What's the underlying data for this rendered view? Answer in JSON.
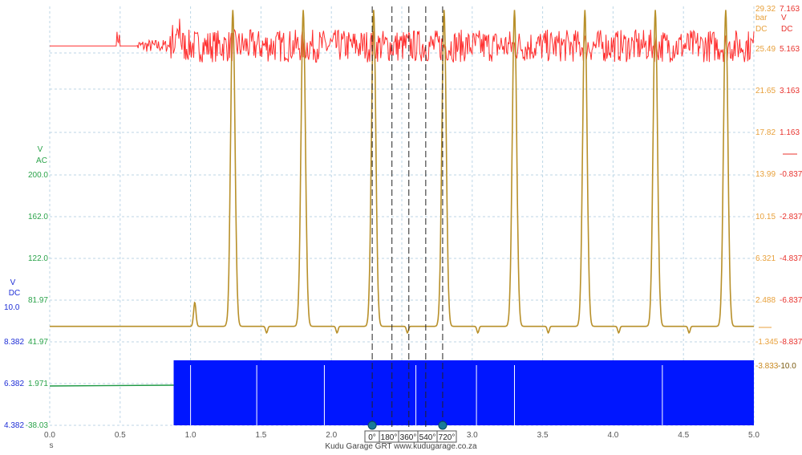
{
  "chart_data": {
    "type": "line",
    "xaxis": {
      "range": [
        0.0,
        5.0
      ],
      "ticks": [
        "0.0",
        "0.5",
        "1.0",
        "1.5",
        "2.0",
        "2.5",
        "3.0",
        "3.5",
        "4.0",
        "4.5",
        "5.0"
      ],
      "unit": "s"
    },
    "axes": {
      "pressure_bar": {
        "color": "#e8a13c",
        "unit_lines": [
          "bar",
          "DC"
        ],
        "ticks": [
          "29.32",
          "25.49",
          "21.65",
          "17.82",
          "13.99",
          "10.15",
          "6.321",
          "2.488",
          "-1.345"
        ]
      },
      "red_volts": {
        "color": "#e8332e",
        "unit_lines": [
          "V",
          "DC"
        ],
        "ticks": [
          "7.163",
          "5.163",
          "3.163",
          "1.163",
          "-0.837",
          "-2.837",
          "-4.837",
          "-6.837",
          "-8.837"
        ]
      },
      "ac_volts": {
        "color": "#2aa34a",
        "unit_lines": [
          "V",
          "AC"
        ],
        "ticks": [
          "200.0",
          "162.0",
          "122.0",
          "81.97",
          "41.97",
          "1.971",
          "-38.03"
        ]
      },
      "blue_volts": {
        "color": "#1f2fd6",
        "unit_lines": [
          "V",
          "DC"
        ],
        "ticks": [
          "10.0",
          "8.382",
          "6.382",
          "4.382"
        ]
      },
      "right_extra": {
        "ticks": [
          "-10.0",
          "-3.833"
        ]
      }
    },
    "series": [
      {
        "color": "#ff2e2e",
        "baseline": 25.7,
        "start": 0.85,
        "noise_amp": 1.5
      },
      {
        "color": "#b8902a",
        "baseline": 0.0,
        "peaks_x": [
          1.03,
          1.3,
          1.8,
          2.3,
          2.8,
          3.3,
          3.8,
          4.3,
          4.8
        ],
        "peaks_y": [
          2.2,
          29.0,
          29.0,
          29.0,
          29.0,
          29.0,
          29.0,
          29.0,
          29.0
        ]
      },
      {
        "color": "#0016ff",
        "fill_from": 0.88
      },
      {
        "color": "#1e9944",
        "level": 1.971,
        "until": 0.88
      }
    ],
    "cursors": [
      {
        "x": 2.29,
        "label": "0°"
      },
      {
        "x": 2.43,
        "label": "180°"
      },
      {
        "x": 2.55,
        "label": "360°"
      },
      {
        "x": 2.67,
        "label": "540°"
      },
      {
        "x": 2.79,
        "label": "720°"
      }
    ],
    "watermark": "Kudu Garage GRT   www.kudugarage.co.za"
  }
}
